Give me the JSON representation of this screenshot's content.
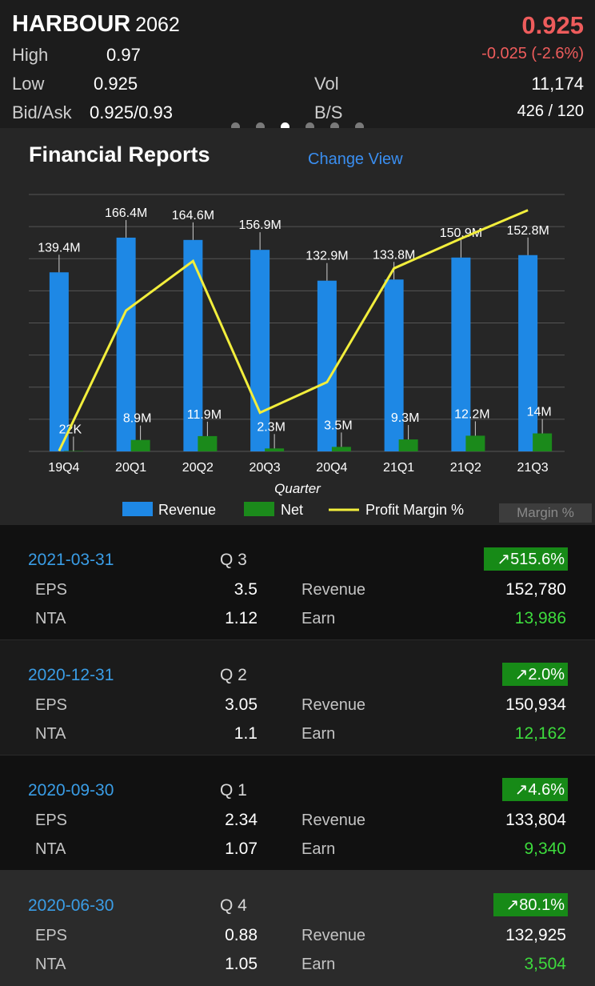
{
  "stock": {
    "name": "HARBOUR",
    "code": "2062",
    "price": "0.925",
    "change": "-0.025 (-2.6%)",
    "high_label": "High",
    "high": "0.97",
    "low_label": "Low",
    "low": "0.925",
    "bidask_label": "Bid/Ask",
    "bidask": "0.925/0.93",
    "vol_label": "Vol",
    "vol": "11,174",
    "bs_label": "B/S",
    "bs": "426 / 120"
  },
  "pager": {
    "count": 6,
    "active_index": 2
  },
  "report": {
    "title": "Financial Reports",
    "change_view": "Change View",
    "margin_button": "Margin %"
  },
  "chart_data": {
    "type": "bar",
    "categories": [
      "19Q4",
      "20Q1",
      "20Q2",
      "20Q3",
      "20Q4",
      "21Q1",
      "21Q2",
      "21Q3"
    ],
    "xlabel": "Quarter",
    "series": [
      {
        "name": "Revenue",
        "values": [
          139.4,
          166.4,
          164.6,
          156.9,
          132.9,
          133.8,
          150.9,
          152.8
        ],
        "labels": [
          "139.4M",
          "166.4M",
          "164.6M",
          "156.9M",
          "132.9M",
          "133.8M",
          "150.9M",
          "152.8M"
        ],
        "color": "#1e88e5"
      },
      {
        "name": "Net",
        "values": [
          0.022,
          8.9,
          11.9,
          2.3,
          3.5,
          9.3,
          12.2,
          14
        ],
        "labels": [
          "22K",
          "8.9M",
          "11.9M",
          "2.3M",
          "3.5M",
          "9.3M",
          "12.2M",
          "14M"
        ],
        "color": "#1b8a1b"
      },
      {
        "name": "Profit Margin %",
        "type": "line",
        "values": [
          0.02,
          5.35,
          7.23,
          1.47,
          2.63,
          6.95,
          8.08,
          9.16
        ],
        "color": "#f2ee3c"
      }
    ],
    "ylim": [
      0,
      200
    ],
    "grid": true,
    "legend": "bottom"
  },
  "records": [
    {
      "date": "2021-03-31",
      "q": "Q 3",
      "growth": "↗515.6%",
      "eps_label": "EPS",
      "eps": "3.5",
      "nta_label": "NTA",
      "nta": "1.12",
      "rev_label": "Revenue",
      "revenue": "152,780",
      "earn_label": "Earn",
      "earn": "13,986"
    },
    {
      "date": "2020-12-31",
      "q": "Q 2",
      "growth": "↗2.0%",
      "eps_label": "EPS",
      "eps": "3.05",
      "nta_label": "NTA",
      "nta": "1.1",
      "rev_label": "Revenue",
      "revenue": "150,934",
      "earn_label": "Earn",
      "earn": "12,162"
    },
    {
      "date": "2020-09-30",
      "q": "Q 1",
      "growth": "↗4.6%",
      "eps_label": "EPS",
      "eps": "2.34",
      "nta_label": "NTA",
      "nta": "1.07",
      "rev_label": "Revenue",
      "revenue": "133,804",
      "earn_label": "Earn",
      "earn": "9,340"
    },
    {
      "date": "2020-06-30",
      "q": "Q 4",
      "growth": "↗80.1%",
      "eps_label": "EPS",
      "eps": "0.88",
      "nta_label": "NTA",
      "nta": "1.05",
      "rev_label": "Revenue",
      "revenue": "132,925",
      "earn_label": "Earn",
      "earn": "3,504"
    }
  ]
}
